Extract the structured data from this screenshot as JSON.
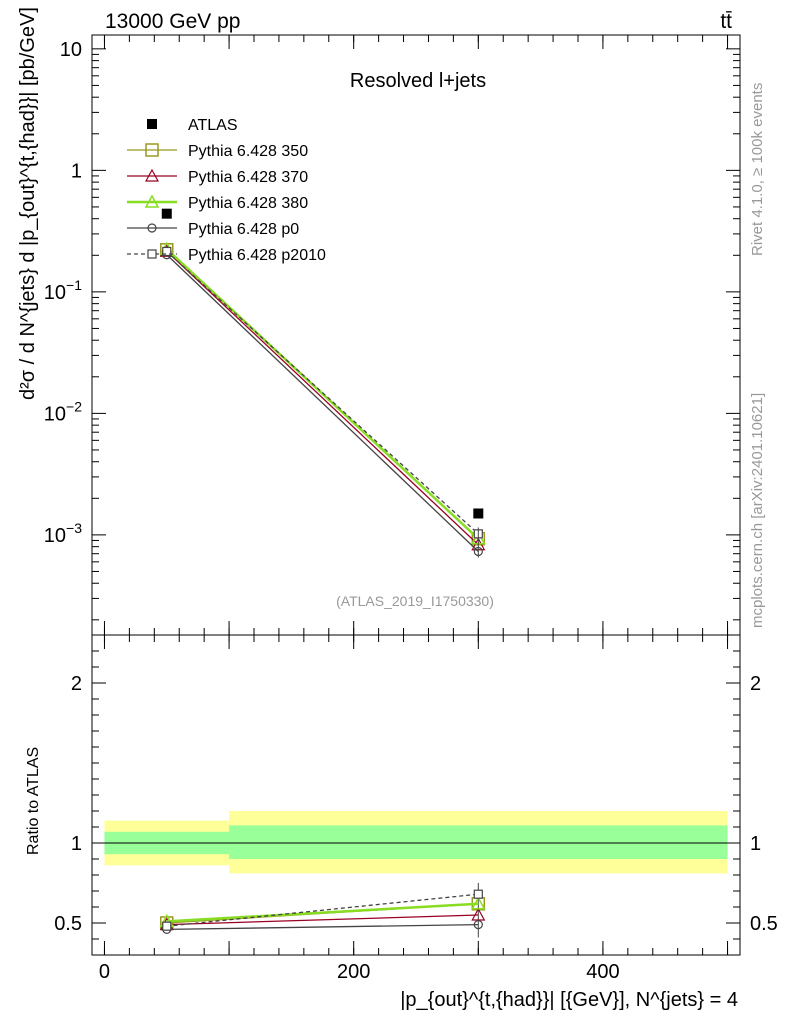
{
  "header": {
    "left": "13000 GeV pp",
    "right": "tt̄"
  },
  "side": {
    "rivet": "Rivet 4.1.0, ≥ 100k events",
    "mcplots": "mcplots.cern.ch [arXiv:2401.10621]"
  },
  "colors": {
    "atlas": "#000000",
    "p350": "#999922",
    "p370": "#990022",
    "p380": "#88dd22",
    "p0": "#444444",
    "p2010": "#444444",
    "band_inner": "#99ff99",
    "band_outer": "#ffff99"
  },
  "chart_data": [
    {
      "type": "line",
      "title": "Resolved l+jets",
      "ylabel": "d²σ / d N^{jets} d |p_{out}^{t,{had}}| [pb/GeV]",
      "yscale": "log",
      "ylim": [
        0.00015,
        13
      ],
      "xlim": [
        -10,
        510
      ],
      "yticks": [
        {
          "v": 10,
          "m": "10",
          "e": ""
        },
        {
          "v": 1,
          "m": "1",
          "e": ""
        },
        {
          "v": 0.1,
          "m": "10",
          "e": "−1"
        },
        {
          "v": 0.01,
          "m": "10",
          "e": "−2"
        },
        {
          "v": 0.001,
          "m": "10",
          "e": "−3"
        }
      ],
      "watermark": "(ATLAS_2019_I1750330)",
      "legend": [
        {
          "name": "ATLAS"
        },
        {
          "name": "Pythia 6.428 350"
        },
        {
          "name": "Pythia 6.428 370"
        },
        {
          "name": "Pythia 6.428 380"
        },
        {
          "name": "Pythia 6.428 p0"
        },
        {
          "name": "Pythia 6.428 p2010"
        }
      ],
      "data": {
        "name": "ATLAS",
        "x": [
          50,
          300
        ],
        "y": [
          0.44,
          0.0015
        ]
      },
      "series": [
        {
          "name": "Pythia 6.428 350",
          "x": [
            50,
            300
          ],
          "y": [
            0.222,
            0.00093
          ]
        },
        {
          "name": "Pythia 6.428 370",
          "x": [
            50,
            300
          ],
          "y": [
            0.216,
            0.00083
          ]
        },
        {
          "name": "Pythia 6.428 380",
          "x": [
            50,
            300
          ],
          "y": [
            0.225,
            0.00093
          ]
        },
        {
          "name": "Pythia 6.428 p0",
          "x": [
            50,
            300
          ],
          "y": [
            0.202,
            0.00073
          ]
        },
        {
          "name": "Pythia 6.428 p2010",
          "x": [
            50,
            300
          ],
          "y": [
            0.215,
            0.00102
          ]
        }
      ]
    },
    {
      "type": "line",
      "ylabel": "Ratio to ATLAS",
      "xlabel": "|p_{out}^{t,{had}}| [{GeV}], N^{jets} = 4",
      "ylim": [
        0.3,
        2.3
      ],
      "xlim": [
        -10,
        510
      ],
      "yticks": [
        "0.5",
        "1",
        "2"
      ],
      "xticks": [
        "0",
        "200",
        "400"
      ],
      "bands": [
        {
          "x0": 0,
          "x1": 100,
          "inner": [
            0.93,
            1.07
          ],
          "outer": [
            0.86,
            1.14
          ]
        },
        {
          "x0": 100,
          "x1": 500,
          "inner": [
            0.9,
            1.11
          ],
          "outer": [
            0.81,
            1.2
          ]
        }
      ],
      "series": [
        {
          "name": "Pythia 6.428 350",
          "x": [
            50,
            300
          ],
          "y": [
            0.5,
            0.62
          ]
        },
        {
          "name": "Pythia 6.428 370",
          "x": [
            50,
            300
          ],
          "y": [
            0.49,
            0.55
          ]
        },
        {
          "name": "Pythia 6.428 380",
          "x": [
            50,
            300
          ],
          "y": [
            0.51,
            0.62
          ]
        },
        {
          "name": "Pythia 6.428 p0",
          "x": [
            50,
            300
          ],
          "y": [
            0.46,
            0.49
          ]
        },
        {
          "name": "Pythia 6.428 p2010",
          "x": [
            50,
            300
          ],
          "y": [
            0.48,
            0.68
          ]
        }
      ]
    }
  ]
}
